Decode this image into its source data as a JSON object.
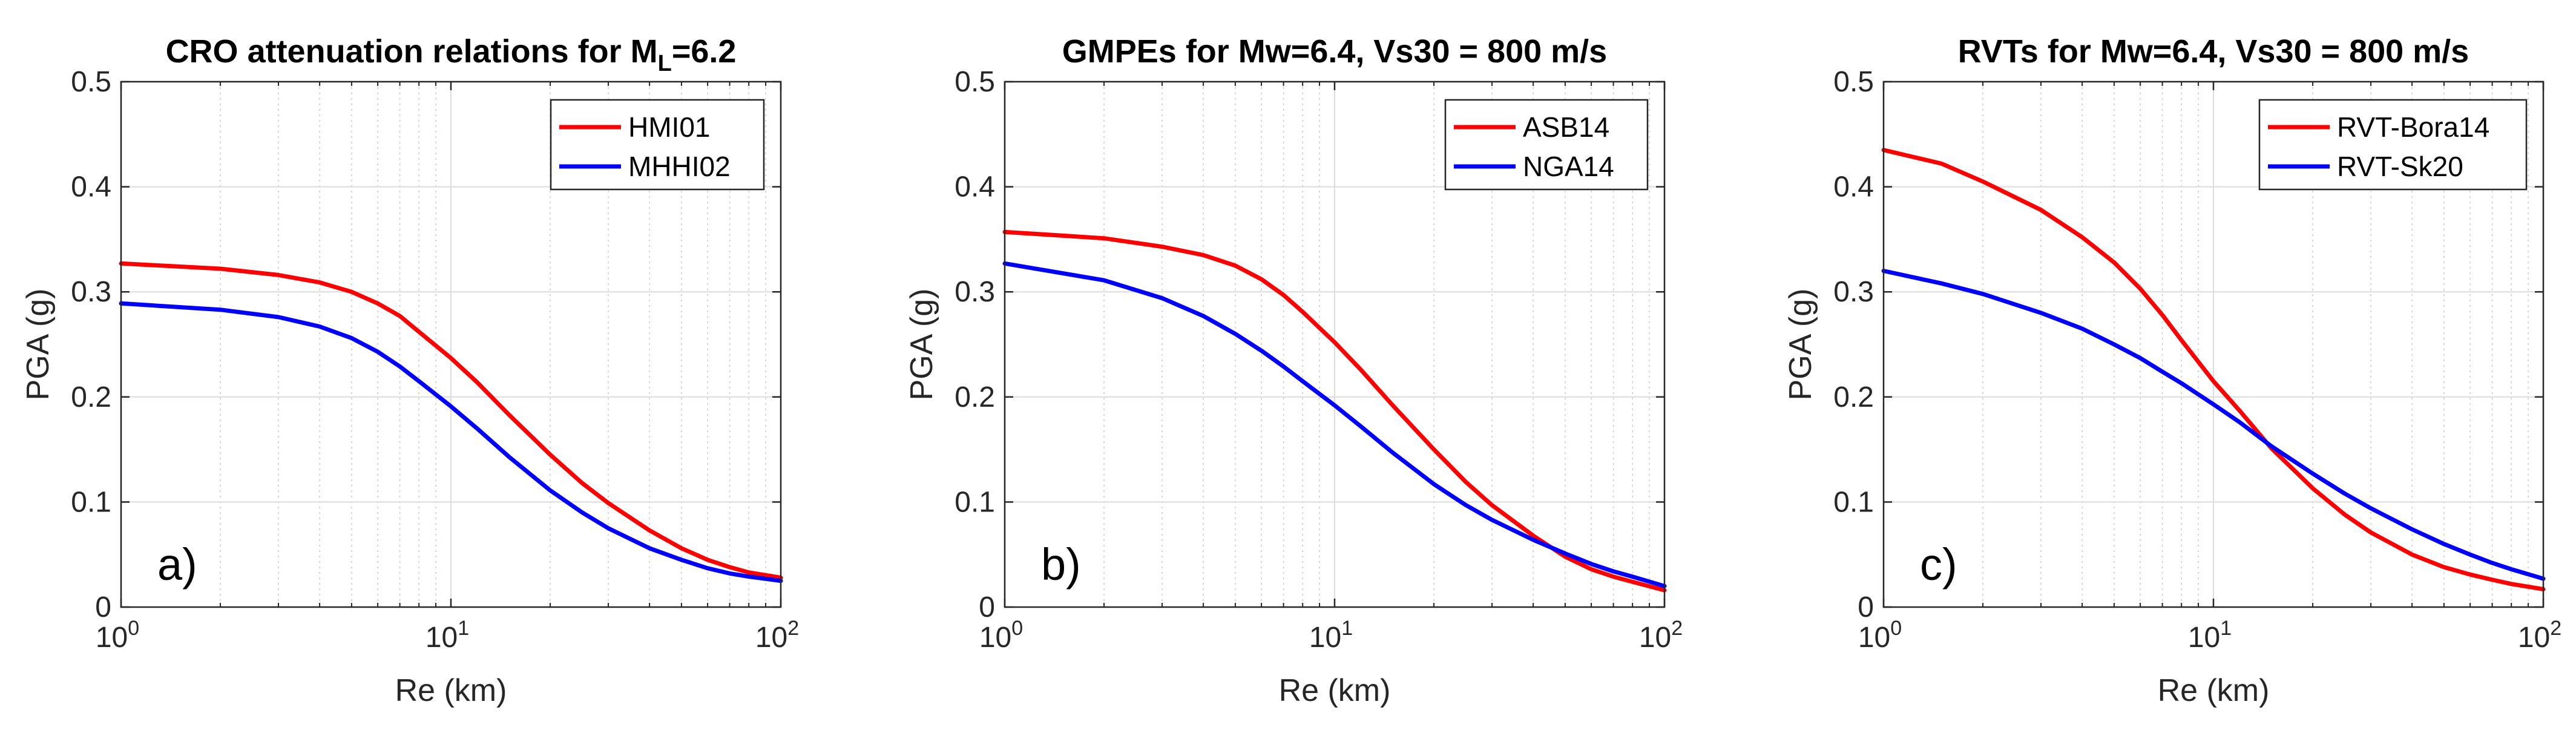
{
  "chart_data": [
    {
      "type": "line",
      "panel_label": "a)",
      "title": {
        "main": "CRO attenuation relations for M",
        "sub": "L",
        "tail": "=6.2"
      },
      "xlabel": "Re (km)",
      "ylabel": "PGA (g)",
      "xscale": "log",
      "xlim": [
        1,
        100
      ],
      "ylim": [
        0,
        0.5
      ],
      "xticks": [
        {
          "base": "10",
          "exp": "0"
        },
        {
          "base": "10",
          "exp": "1"
        },
        {
          "base": "10",
          "exp": "2"
        }
      ],
      "yticks": [
        "0",
        "0.1",
        "0.2",
        "0.3",
        "0.4",
        "0.5"
      ],
      "legend": "top-right",
      "grid": true,
      "series": [
        {
          "name": "HMI01",
          "color": "#ff0000",
          "x": [
            1,
            2,
            3,
            4,
            5,
            6,
            7,
            8,
            10,
            12,
            15,
            20,
            25,
            30,
            40,
            50,
            60,
            70,
            80,
            100
          ],
          "y": [
            0.327,
            0.322,
            0.316,
            0.309,
            0.3,
            0.289,
            0.277,
            0.262,
            0.237,
            0.214,
            0.183,
            0.145,
            0.118,
            0.099,
            0.073,
            0.056,
            0.045,
            0.038,
            0.033,
            0.028
          ]
        },
        {
          "name": "MHHI02",
          "color": "#0000ff",
          "x": [
            1,
            2,
            3,
            4,
            5,
            6,
            7,
            8,
            10,
            12,
            15,
            20,
            25,
            30,
            40,
            50,
            60,
            70,
            80,
            100
          ],
          "y": [
            0.289,
            0.283,
            0.276,
            0.267,
            0.256,
            0.243,
            0.229,
            0.215,
            0.191,
            0.17,
            0.143,
            0.111,
            0.09,
            0.075,
            0.056,
            0.045,
            0.037,
            0.032,
            0.029,
            0.025
          ]
        }
      ]
    },
    {
      "type": "line",
      "panel_label": "b)",
      "title": {
        "main": "GMPEs for Mw=6.4, Vs30 = 800 m/s",
        "sub": "",
        "tail": ""
      },
      "xlabel": "Re (km)",
      "ylabel": "PGA (g)",
      "xscale": "log",
      "xlim": [
        1,
        100
      ],
      "ylim": [
        0,
        0.5
      ],
      "xticks": [
        {
          "base": "10",
          "exp": "0"
        },
        {
          "base": "10",
          "exp": "1"
        },
        {
          "base": "10",
          "exp": "2"
        }
      ],
      "yticks": [
        "0",
        "0.1",
        "0.2",
        "0.3",
        "0.4",
        "0.5"
      ],
      "legend": "top-right",
      "grid": true,
      "series": [
        {
          "name": "ASB14",
          "color": "#ff0000",
          "x": [
            1,
            2,
            3,
            4,
            5,
            6,
            7,
            8,
            10,
            12,
            15,
            20,
            25,
            30,
            40,
            50,
            60,
            70,
            80,
            100
          ],
          "y": [
            0.357,
            0.351,
            0.343,
            0.335,
            0.325,
            0.312,
            0.297,
            0.281,
            0.252,
            0.226,
            0.192,
            0.15,
            0.119,
            0.097,
            0.068,
            0.048,
            0.036,
            0.029,
            0.024,
            0.016
          ]
        },
        {
          "name": "NGA14",
          "color": "#0000ff",
          "x": [
            1,
            2,
            3,
            4,
            5,
            6,
            7,
            8,
            10,
            12,
            15,
            20,
            25,
            30,
            40,
            50,
            60,
            70,
            80,
            100
          ],
          "y": [
            0.327,
            0.311,
            0.294,
            0.277,
            0.26,
            0.244,
            0.229,
            0.215,
            0.192,
            0.172,
            0.147,
            0.117,
            0.097,
            0.083,
            0.064,
            0.051,
            0.041,
            0.034,
            0.029,
            0.02
          ]
        }
      ]
    },
    {
      "type": "line",
      "panel_label": "c)",
      "title": {
        "main": "RVTs for Mw=6.4, Vs30 = 800 m/s",
        "sub": "",
        "tail": ""
      },
      "xlabel": "Re (km)",
      "ylabel": "PGA (g)",
      "xscale": "log",
      "xlim": [
        1,
        100
      ],
      "ylim": [
        0,
        0.5
      ],
      "xticks": [
        {
          "base": "10",
          "exp": "0"
        },
        {
          "base": "10",
          "exp": "1"
        },
        {
          "base": "10",
          "exp": "2"
        }
      ],
      "yticks": [
        "0",
        "0.1",
        "0.2",
        "0.3",
        "0.4",
        "0.5"
      ],
      "legend": "top-right",
      "grid": true,
      "series": [
        {
          "name": "RVT-Bora14",
          "color": "#ff0000",
          "x": [
            1,
            1.5,
            2,
            3,
            4,
            5,
            6,
            7,
            8,
            10,
            12,
            15,
            20,
            25,
            30,
            40,
            50,
            60,
            70,
            80,
            100
          ],
          "y": [
            0.435,
            0.422,
            0.405,
            0.378,
            0.352,
            0.328,
            0.303,
            0.278,
            0.254,
            0.215,
            0.187,
            0.151,
            0.113,
            0.088,
            0.071,
            0.05,
            0.038,
            0.031,
            0.026,
            0.022,
            0.017
          ]
        },
        {
          "name": "RVT-Sk20",
          "color": "#0000ff",
          "x": [
            1,
            1.5,
            2,
            3,
            4,
            5,
            6,
            7,
            8,
            10,
            12,
            15,
            20,
            25,
            30,
            40,
            50,
            60,
            70,
            80,
            100
          ],
          "y": [
            0.32,
            0.308,
            0.298,
            0.28,
            0.265,
            0.25,
            0.237,
            0.224,
            0.213,
            0.193,
            0.176,
            0.153,
            0.127,
            0.108,
            0.094,
            0.074,
            0.06,
            0.05,
            0.042,
            0.036,
            0.027
          ]
        }
      ]
    }
  ]
}
